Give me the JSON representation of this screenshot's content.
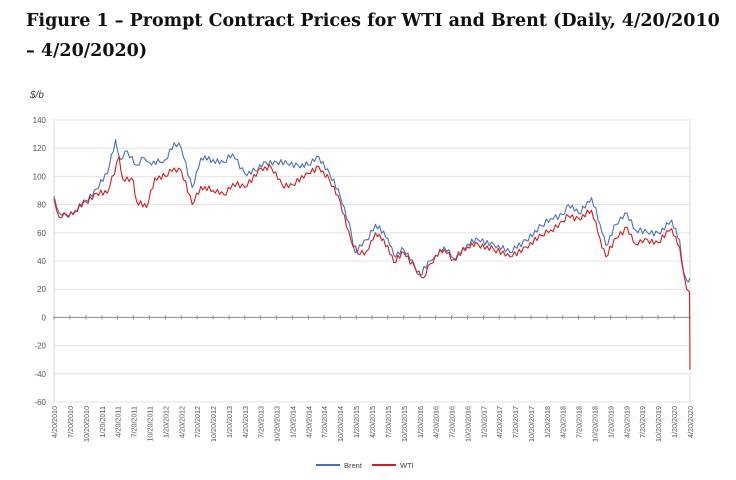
{
  "figure": {
    "title": "Figure 1 – Prompt Contract Prices for WTI and Brent (Daily, 4/20/2010 – 4/20/2020)"
  },
  "chart_data": {
    "type": "line",
    "ylabel": "$/b",
    "xlabel": "",
    "ylim": [
      -60,
      140
    ],
    "yticks": [
      140,
      120,
      100,
      80,
      60,
      40,
      20,
      0,
      -20,
      -40,
      -60
    ],
    "grid": "horizontal",
    "legend_position": "bottom-center",
    "xticks": [
      "4/20/2010",
      "7/20/2010",
      "10/20/2010",
      "1/20/2011",
      "4/20/2011",
      "7/20/2011",
      "10/20/2011",
      "1/20/2012",
      "4/20/2012",
      "7/20/2012",
      "10/20/2012",
      "1/20/2013",
      "4/20/2013",
      "7/20/2013",
      "10/20/2013",
      "1/20/2014",
      "4/20/2014",
      "7/20/2014",
      "10/20/2014",
      "1/20/2015",
      "4/20/2015",
      "7/20/2015",
      "10/20/2015",
      "1/20/2016",
      "4/20/2016",
      "7/20/2016",
      "10/20/2016",
      "1/20/2017",
      "4/20/2017",
      "7/20/2017",
      "10/20/2017",
      "1/20/2018",
      "4/20/2018",
      "7/20/2018",
      "10/20/2018",
      "1/20/2019",
      "4/20/2019",
      "7/20/2019",
      "10/20/2019",
      "1/20/2020",
      "4/20/2020"
    ],
    "series": [
      {
        "name": "Brent",
        "color": "#4a6fb5",
        "x": [
          "2010-04-20",
          "2010-05-20",
          "2010-07-01",
          "2010-08-20",
          "2010-10-20",
          "2010-12-20",
          "2011-02-20",
          "2011-04-08",
          "2011-05-06",
          "2011-06-15",
          "2011-08-08",
          "2011-09-20",
          "2011-10-20",
          "2011-12-20",
          "2012-01-20",
          "2012-03-10",
          "2012-04-20",
          "2012-06-22",
          "2012-08-10",
          "2012-10-20",
          "2012-12-20",
          "2013-02-10",
          "2013-04-20",
          "2013-06-20",
          "2013-08-20",
          "2013-10-20",
          "2013-12-20",
          "2014-02-20",
          "2014-04-20",
          "2014-06-19",
          "2014-08-20",
          "2014-10-20",
          "2014-12-20",
          "2015-01-13",
          "2015-03-20",
          "2015-05-10",
          "2015-07-20",
          "2015-08-24",
          "2015-10-20",
          "2015-12-20",
          "2016-01-20",
          "2016-03-20",
          "2016-04-20",
          "2016-06-08",
          "2016-08-02",
          "2016-10-20",
          "2016-12-20",
          "2017-03-20",
          "2017-06-21",
          "2017-09-20",
          "2017-12-20",
          "2018-02-10",
          "2018-04-20",
          "2018-05-22",
          "2018-07-20",
          "2018-10-03",
          "2018-11-20",
          "2018-12-24",
          "2019-02-20",
          "2019-04-25",
          "2019-06-12",
          "2019-08-20",
          "2019-10-20",
          "2019-12-20",
          "2020-01-06",
          "2020-02-20",
          "2020-03-15",
          "2020-04-01",
          "2020-04-20"
        ],
        "values": [
          86,
          74,
          72,
          76,
          83,
          91,
          102,
          126,
          112,
          118,
          108,
          113,
          110,
          110,
          112,
          124,
          120,
          92,
          113,
          112,
          110,
          116,
          102,
          104,
          110,
          110,
          109,
          108,
          108,
          114,
          102,
          86,
          62,
          46,
          55,
          66,
          56,
          44,
          48,
          37,
          30,
          40,
          44,
          50,
          42,
          52,
          55,
          52,
          46,
          55,
          65,
          70,
          73,
          80,
          74,
          85,
          66,
          51,
          66,
          74,
          62,
          60,
          60,
          66,
          69,
          55,
          32,
          26,
          28
        ]
      },
      {
        "name": "WTI",
        "color": "#d11f1f",
        "x": [
          "2010-04-20",
          "2010-05-20",
          "2010-07-01",
          "2010-08-20",
          "2010-10-20",
          "2010-12-20",
          "2011-02-20",
          "2011-04-29",
          "2011-05-20",
          "2011-07-20",
          "2011-08-08",
          "2011-10-04",
          "2011-11-20",
          "2012-01-20",
          "2012-03-10",
          "2012-04-20",
          "2012-06-22",
          "2012-08-10",
          "2012-10-20",
          "2012-12-20",
          "2013-02-10",
          "2013-04-20",
          "2013-07-20",
          "2013-09-20",
          "2013-11-20",
          "2014-01-20",
          "2014-04-20",
          "2014-06-19",
          "2014-08-20",
          "2014-10-20",
          "2014-12-20",
          "2015-01-28",
          "2015-03-20",
          "2015-05-10",
          "2015-07-20",
          "2015-08-24",
          "2015-10-20",
          "2015-12-20",
          "2016-02-11",
          "2016-03-20",
          "2016-04-20",
          "2016-06-08",
          "2016-08-02",
          "2016-10-20",
          "2016-12-20",
          "2017-03-20",
          "2017-06-21",
          "2017-09-20",
          "2017-12-20",
          "2018-02-10",
          "2018-04-20",
          "2018-05-22",
          "2018-07-20",
          "2018-10-03",
          "2018-11-20",
          "2018-12-24",
          "2019-02-20",
          "2019-04-25",
          "2019-06-12",
          "2019-08-20",
          "2019-10-20",
          "2019-12-20",
          "2020-01-06",
          "2020-02-20",
          "2020-03-15",
          "2020-04-01",
          "2020-04-17",
          "2020-04-20"
        ],
        "values": [
          84,
          71,
          73,
          75,
          82,
          88,
          88,
          114,
          98,
          97,
          82,
          78,
          99,
          100,
          106,
          104,
          80,
          93,
          90,
          87,
          95,
          92,
          106,
          106,
          94,
          94,
          102,
          107,
          97,
          82,
          55,
          45,
          47,
          60,
          51,
          39,
          46,
          36,
          28,
          38,
          44,
          48,
          41,
          50,
          52,
          48,
          43,
          50,
          58,
          62,
          68,
          72,
          70,
          76,
          56,
          43,
          56,
          64,
          52,
          55,
          53,
          61,
          63,
          50,
          31,
          20,
          18,
          -37
        ]
      }
    ]
  }
}
